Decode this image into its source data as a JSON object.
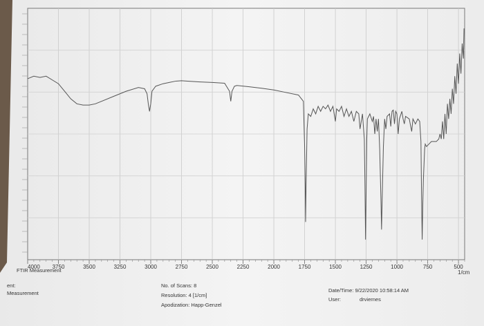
{
  "chart_data": {
    "type": "line",
    "xlabel": "1/cm",
    "xlim": [
      4000,
      450
    ],
    "ylim": [
      0,
      100
    ],
    "grid": true,
    "x_ticks": [
      4000,
      3750,
      3500,
      3250,
      3000,
      2750,
      2500,
      2250,
      2000,
      1750,
      1500,
      1250,
      1000,
      750,
      500
    ],
    "series": [
      {
        "values": [
          [
            4000,
            72
          ],
          [
            3950,
            73
          ],
          [
            3900,
            72.5
          ],
          [
            3850,
            73
          ],
          [
            3800,
            71.5
          ],
          [
            3750,
            70
          ],
          [
            3700,
            67
          ],
          [
            3650,
            64
          ],
          [
            3600,
            62
          ],
          [
            3550,
            61.5
          ],
          [
            3500,
            61.5
          ],
          [
            3450,
            62
          ],
          [
            3400,
            63
          ],
          [
            3300,
            65
          ],
          [
            3200,
            67
          ],
          [
            3100,
            68.5
          ],
          [
            3050,
            68
          ],
          [
            3030,
            66
          ],
          [
            3020,
            62
          ],
          [
            3010,
            59
          ],
          [
            3000,
            62
          ],
          [
            2990,
            67
          ],
          [
            2960,
            69
          ],
          [
            2900,
            70
          ],
          [
            2850,
            70.5
          ],
          [
            2800,
            71
          ],
          [
            2750,
            71.2
          ],
          [
            2700,
            71
          ],
          [
            2600,
            70.7
          ],
          [
            2500,
            70.5
          ],
          [
            2400,
            70.2
          ],
          [
            2360,
            67
          ],
          [
            2350,
            63
          ],
          [
            2340,
            67
          ],
          [
            2320,
            69
          ],
          [
            2300,
            69.3
          ],
          [
            2200,
            68.8
          ],
          [
            2100,
            68.2
          ],
          [
            2000,
            67.5
          ],
          [
            1900,
            66.5
          ],
          [
            1800,
            65.5
          ],
          [
            1760,
            63
          ],
          [
            1750,
            45
          ],
          [
            1745,
            30
          ],
          [
            1742,
            15
          ],
          [
            1738,
            30
          ],
          [
            1730,
            52
          ],
          [
            1720,
            58
          ],
          [
            1700,
            57
          ],
          [
            1680,
            60
          ],
          [
            1660,
            58
          ],
          [
            1640,
            61
          ],
          [
            1620,
            59
          ],
          [
            1600,
            61
          ],
          [
            1580,
            60
          ],
          [
            1560,
            61.5
          ],
          [
            1540,
            59
          ],
          [
            1520,
            61
          ],
          [
            1500,
            55
          ],
          [
            1490,
            60
          ],
          [
            1470,
            59
          ],
          [
            1450,
            61
          ],
          [
            1430,
            57
          ],
          [
            1410,
            60
          ],
          [
            1390,
            57
          ],
          [
            1370,
            59
          ],
          [
            1350,
            55
          ],
          [
            1330,
            59
          ],
          [
            1310,
            58
          ],
          [
            1300,
            52
          ],
          [
            1280,
            58
          ],
          [
            1265,
            48
          ],
          [
            1260,
            30
          ],
          [
            1255,
            8
          ],
          [
            1250,
            28
          ],
          [
            1245,
            48
          ],
          [
            1240,
            56
          ],
          [
            1220,
            58
          ],
          [
            1200,
            55
          ],
          [
            1190,
            57
          ],
          [
            1180,
            50
          ],
          [
            1170,
            56
          ],
          [
            1160,
            51
          ],
          [
            1150,
            56
          ],
          [
            1140,
            44
          ],
          [
            1130,
            24
          ],
          [
            1125,
            12
          ],
          [
            1120,
            24
          ],
          [
            1110,
            45
          ],
          [
            1100,
            56
          ],
          [
            1090,
            52
          ],
          [
            1080,
            57
          ],
          [
            1060,
            58
          ],
          [
            1050,
            53
          ],
          [
            1040,
            59
          ],
          [
            1030,
            59.5
          ],
          [
            1020,
            54
          ],
          [
            1010,
            59
          ],
          [
            1000,
            58
          ],
          [
            990,
            50
          ],
          [
            980,
            56
          ],
          [
            960,
            59
          ],
          [
            950,
            56
          ],
          [
            940,
            54
          ],
          [
            930,
            57
          ],
          [
            900,
            56
          ],
          [
            880,
            51
          ],
          [
            870,
            56
          ],
          [
            850,
            54
          ],
          [
            830,
            56
          ],
          [
            815,
            55
          ],
          [
            805,
            47
          ],
          [
            800,
            25
          ],
          [
            795,
            8
          ],
          [
            790,
            22
          ],
          [
            785,
            32
          ],
          [
            780,
            38
          ],
          [
            775,
            44
          ],
          [
            770,
            46
          ],
          [
            760,
            45
          ],
          [
            740,
            46
          ],
          [
            720,
            47
          ],
          [
            700,
            47
          ],
          [
            680,
            47
          ],
          [
            660,
            48
          ],
          [
            650,
            50
          ],
          [
            640,
            48
          ],
          [
            630,
            55
          ],
          [
            620,
            48
          ],
          [
            610,
            58
          ],
          [
            600,
            50
          ],
          [
            590,
            62
          ],
          [
            580,
            56
          ],
          [
            570,
            64
          ],
          [
            560,
            58
          ],
          [
            550,
            68
          ],
          [
            540,
            62
          ],
          [
            530,
            73
          ],
          [
            520,
            66
          ],
          [
            510,
            78
          ],
          [
            500,
            70
          ],
          [
            490,
            82
          ],
          [
            480,
            74
          ],
          [
            470,
            86
          ],
          [
            460,
            80
          ],
          [
            455,
            92
          ]
        ]
      }
    ]
  },
  "footer": {
    "left_partial_top": "4000",
    "ftir_label": "FTIR Measurement",
    "left_cut_label": "ent:",
    "left_cut_value": "Measurement",
    "scans": "No. of Scans: 8",
    "resolution": "Resolution:  4 [1/cm]",
    "apodization": "Apodization:  Happ-Genzel",
    "datetime": "Date/Time: 9/22/2020 10:58:14 AM",
    "user_label": "User:",
    "user_value": "drviernes"
  }
}
